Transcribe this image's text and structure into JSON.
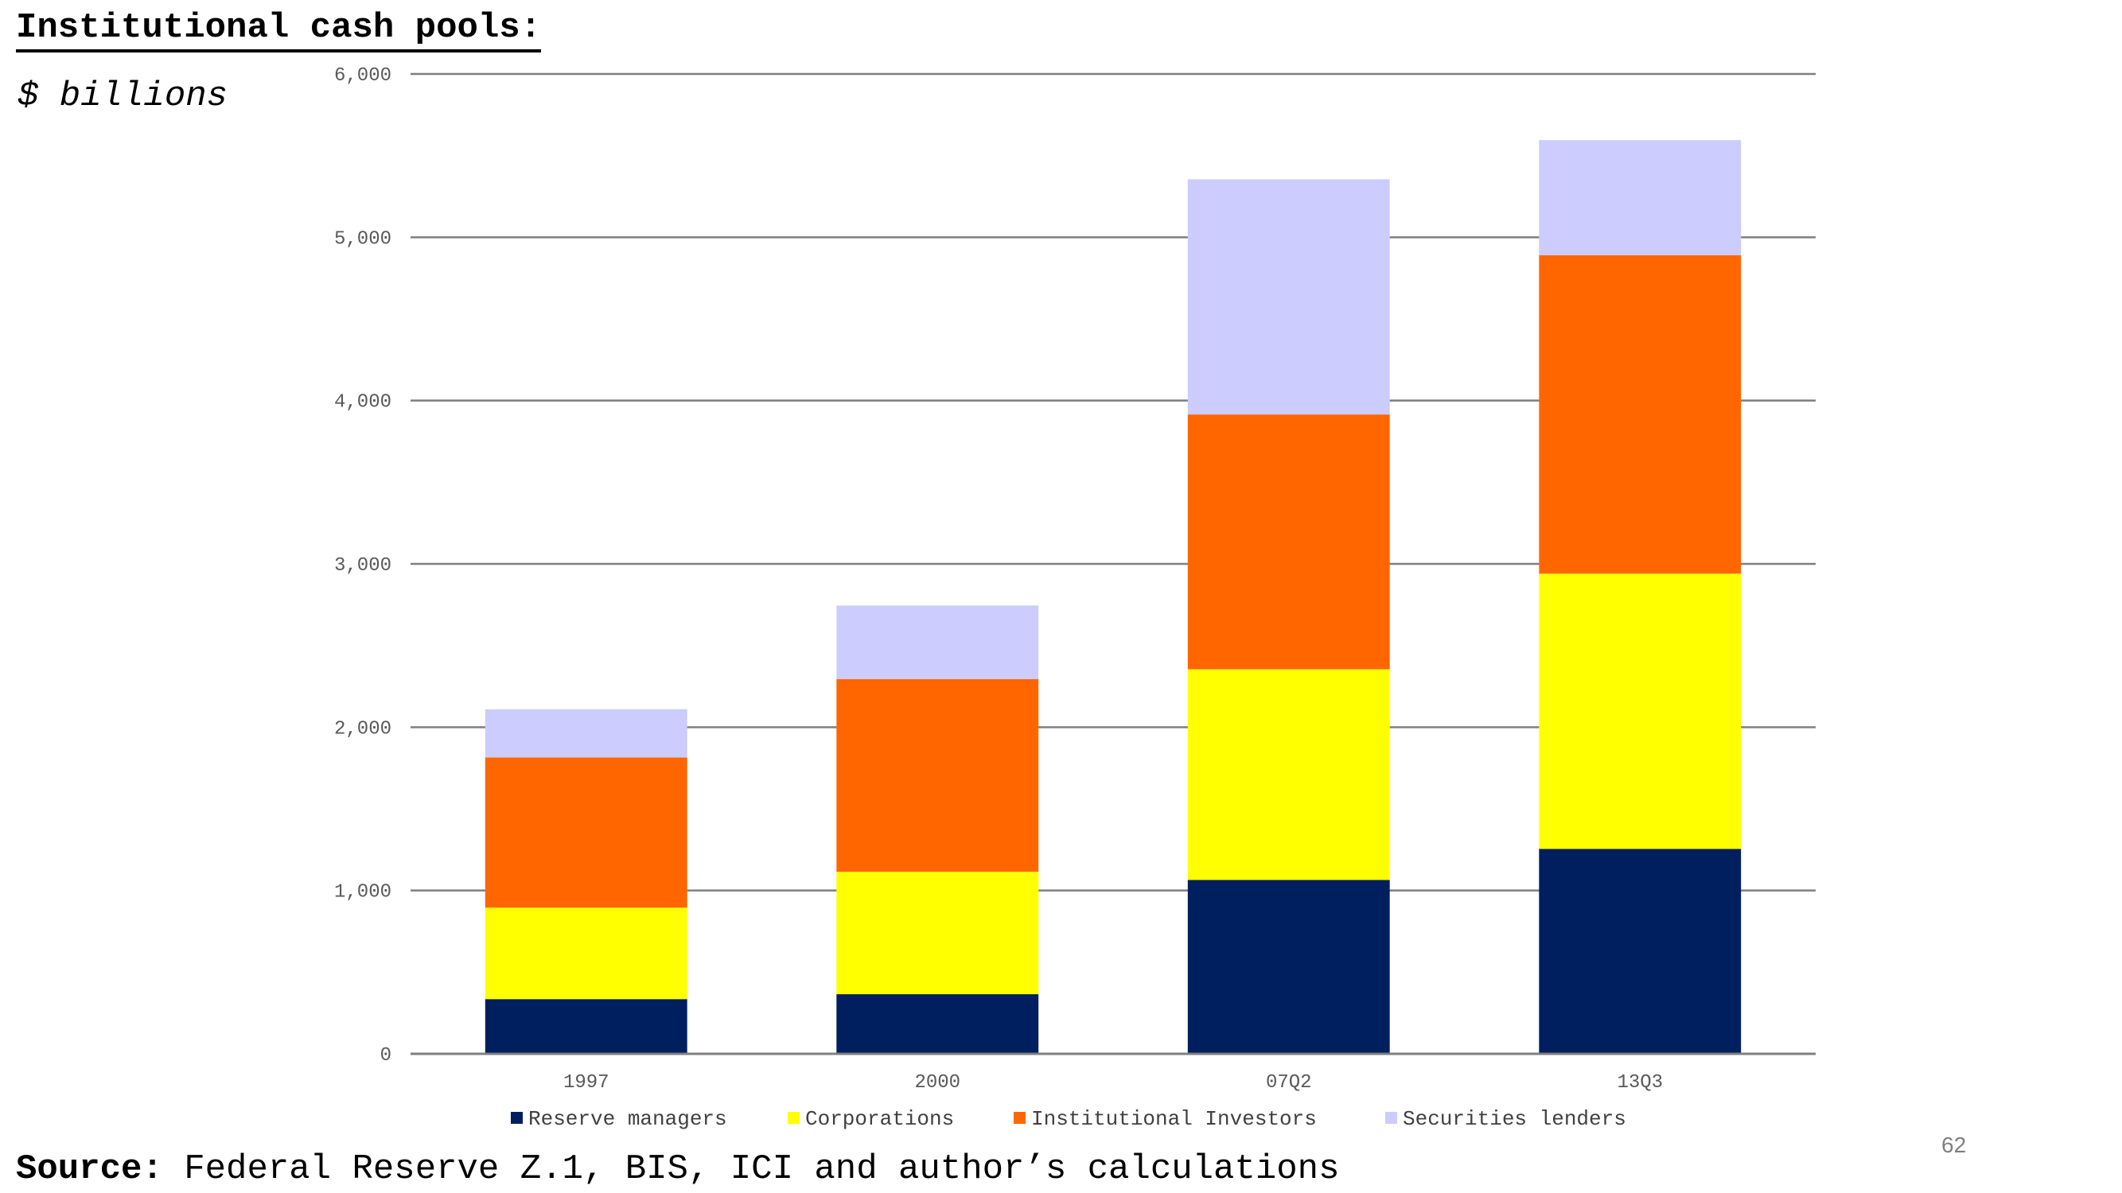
{
  "title": "Institutional cash pools:",
  "subtitle": "$ billions",
  "source": {
    "label": "Source:",
    "text": "Federal Reserve Z.1, BIS, ICI and author’s calculations"
  },
  "page_number": "62",
  "chart_data": {
    "type": "bar",
    "stacked": true,
    "categories": [
      "1997",
      "2000",
      "07Q2",
      "13Q3"
    ],
    "series": [
      {
        "name": "Reserve managers",
        "color": "#001f5f",
        "values": [
          335,
          365,
          1065,
          1255
        ]
      },
      {
        "name": "Corporations",
        "color": "#ffff00",
        "values": [
          560,
          750,
          1290,
          1685
        ]
      },
      {
        "name": "Institutional Investors",
        "color": "#ff6600",
        "values": [
          920,
          1180,
          1560,
          1950
        ]
      },
      {
        "name": "Securities lenders",
        "color": "#ccccff",
        "values": [
          295,
          450,
          1440,
          705
        ]
      }
    ],
    "ylim": [
      0,
      6000
    ],
    "yticks": [
      0,
      1000,
      2000,
      3000,
      4000,
      5000,
      6000
    ],
    "ytick_labels": [
      "0",
      "1,000",
      "2,000",
      "3,000",
      "4,000",
      "5,000",
      "6,000"
    ],
    "grid": true,
    "legend": "bottom"
  }
}
